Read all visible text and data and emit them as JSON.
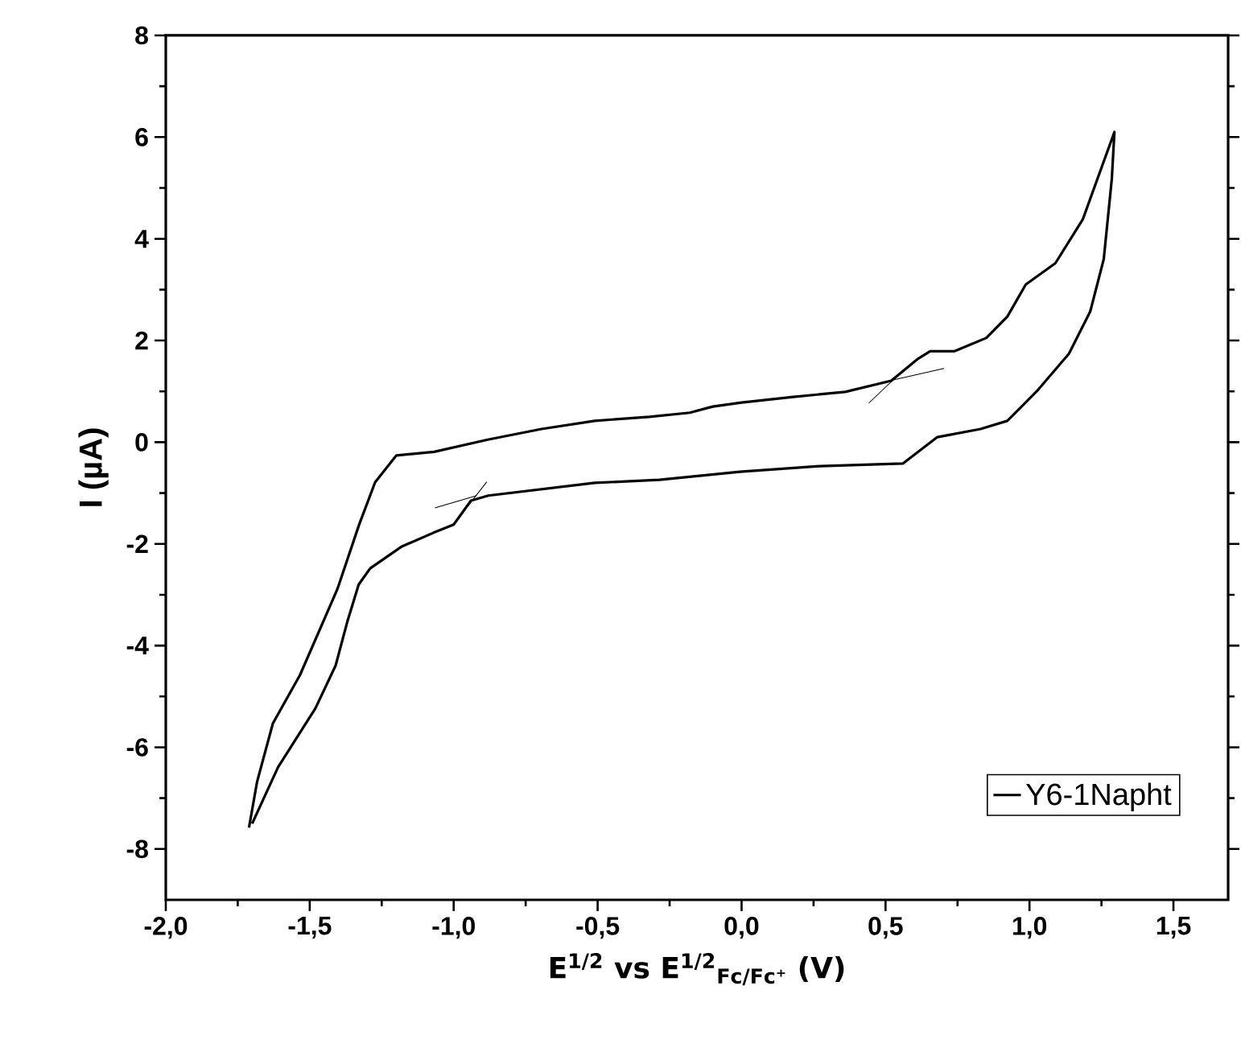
{
  "chart_data": {
    "type": "line",
    "xlabel": "E$^{1/2}$ vs E$^{1/2}$$_{Fc/Fc⁺}$ (V)",
    "ylabel": "I (µA)",
    "xlim": [
      -2,
      1.69
    ],
    "ylim": [
      -9,
      8
    ],
    "xticks": [
      {
        "value": -2,
        "label": "-2,0"
      },
      {
        "value": -1.75,
        "label": null
      },
      {
        "value": -1.5,
        "label": "-1,5"
      },
      {
        "value": -1.25,
        "label": null
      },
      {
        "value": -1,
        "label": "-1,0"
      },
      {
        "value": -0.75,
        "label": null
      },
      {
        "value": -0.5,
        "label": "-0,5"
      },
      {
        "value": -0.25,
        "label": null
      },
      {
        "value": 0,
        "label": "0,0"
      },
      {
        "value": 0.25,
        "label": null
      },
      {
        "value": 0.5,
        "label": "0,5"
      },
      {
        "value": 0.75,
        "label": null
      },
      {
        "value": 1,
        "label": "1,0"
      },
      {
        "value": 1.25,
        "label": null
      },
      {
        "value": 1.5,
        "label": "1,5"
      }
    ],
    "yticks": [
      -8,
      {
        "value": -7,
        "label": null
      },
      -6,
      {
        "value": -5,
        "label": null
      },
      -4,
      {
        "value": -3,
        "label": null
      },
      -2,
      {
        "value": -1,
        "label": null
      },
      0,
      {
        "value": 1,
        "label": null
      },
      2,
      {
        "value": 3,
        "label": null
      },
      4,
      {
        "value": 5,
        "label": null
      },
      6,
      {
        "value": 7,
        "label": null
      },
      8
    ],
    "legend": "bottom right",
    "marker": "none",
    "line_style": "solid",
    "grid": false,
    "series": [
      {
        "name": "Y6-1Napht",
        "color": "#000000",
        "x": [
          -1.711,
          -1.683,
          -1.628,
          -1.534,
          -1.404,
          -1.329,
          -1.273,
          -1.199,
          -1.068,
          -0.882,
          -0.695,
          -0.51,
          -0.32,
          -0.18,
          -0.1,
          0.0,
          0.18,
          0.36,
          0.52,
          0.61,
          0.655,
          0.74,
          0.85,
          0.923,
          0.987,
          1.09,
          1.185,
          1.295,
          1.286,
          1.258,
          1.211,
          1.137,
          1.025,
          0.923,
          0.83,
          0.68,
          0.56,
          0.274,
          -0.006,
          -0.285,
          -0.51,
          -0.88,
          -0.94,
          -1.0,
          -1.07,
          -1.18,
          -1.29,
          -1.33,
          -1.37,
          -1.41,
          -1.48,
          -1.61,
          -1.7
        ],
        "values": [
          -7.58,
          -6.68,
          -5.53,
          -4.58,
          -2.89,
          -1.63,
          -0.79,
          -0.26,
          -0.19,
          0.05,
          0.26,
          0.42,
          0.5,
          0.58,
          0.7,
          0.78,
          0.89,
          0.99,
          1.21,
          1.63,
          1.79,
          1.79,
          2.05,
          2.47,
          3.1,
          3.52,
          4.38,
          6.1,
          5.18,
          3.6,
          2.57,
          1.74,
          1.0,
          0.42,
          0.26,
          0.1,
          -0.42,
          -0.47,
          -0.58,
          -0.74,
          -0.8,
          -1.05,
          -1.15,
          -1.62,
          -1.78,
          -2.05,
          -2.48,
          -2.8,
          -3.54,
          -4.39,
          -5.23,
          -6.39,
          -7.5
        ]
      },
      {
        "type": "line",
        "color": "#000000",
        "x": [
          -1.065,
          -0.92
        ],
        "values": [
          -1.29,
          -1.05
        ]
      },
      {
        "type": "line",
        "color": "#000000",
        "x": [
          -0.95,
          -0.885
        ],
        "values": [
          -1.25,
          -0.78
        ]
      },
      {
        "type": "line",
        "color": "#000000",
        "x": [
          0.515,
          0.703
        ],
        "values": [
          1.21,
          1.45
        ]
      },
      {
        "type": "line",
        "color": "#000000",
        "x": [
          0.442,
          0.563
        ],
        "values": [
          0.77,
          1.42
        ]
      }
    ]
  }
}
